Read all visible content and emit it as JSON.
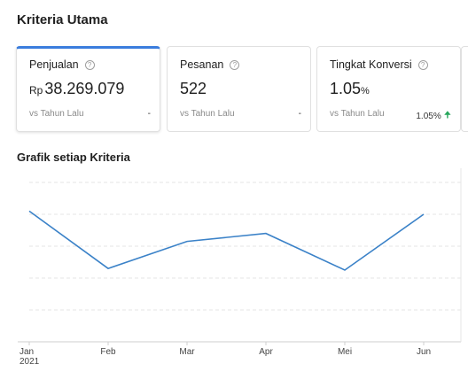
{
  "section": {
    "title": "Kriteria Utama"
  },
  "cards": [
    {
      "label": "Penjualan",
      "prefix": "Rp",
      "value": "38.269.079",
      "suffix": "",
      "compare": "vs Tahun Lalu",
      "change": "-"
    },
    {
      "label": "Pesanan",
      "prefix": "",
      "value": "522",
      "suffix": "",
      "compare": "vs Tahun Lalu",
      "change": "-"
    },
    {
      "label": "Tingkat Konversi",
      "prefix": "",
      "value": "1.05",
      "suffix": "%",
      "compare": "vs Tahun Lalu",
      "change": "1.05%"
    }
  ],
  "chart_title": "Grafik setiap Kriteria",
  "chart_data": {
    "type": "line",
    "title": "",
    "categories": [
      "Jan",
      "Feb",
      "Mar",
      "Apr",
      "Mei",
      "Jun"
    ],
    "year_label": "2021",
    "series": [
      {
        "values": [
          82,
          46,
          63,
          68,
          45,
          80
        ]
      }
    ],
    "ylim": [
      0,
      100
    ],
    "grid": true,
    "color": "#3b82c8"
  }
}
